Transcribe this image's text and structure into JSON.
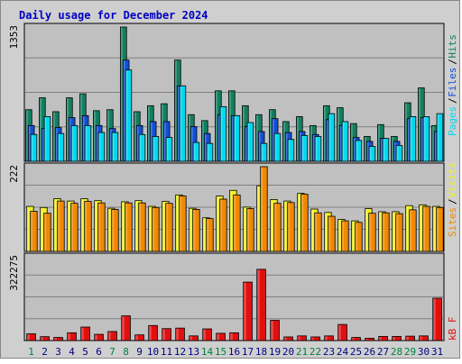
{
  "title": "Daily usage for December 2024",
  "colors": {
    "hits": "#128060",
    "files": "#1050d8",
    "pages": "#00d8f0",
    "visits": "#f0f020",
    "sites": "#f08800",
    "kbytes": "#e01010",
    "title": "#0000c0",
    "weekend": "#008040",
    "weekday": "#000080",
    "plot_bg": "#c0c0c0",
    "frame_bg": "#d0d0d0",
    "gridline": "#808080"
  },
  "chart_data": [
    {
      "type": "bar",
      "title": "Daily usage for December 2024",
      "ylabel_parts": [
        "Pages",
        "Files",
        "Hits"
      ],
      "ymax_label": "1353",
      "ylim": [
        0,
        1353
      ],
      "grid": true,
      "categories": [
        "1",
        "2",
        "3",
        "4",
        "5",
        "6",
        "7",
        "8",
        "9",
        "10",
        "11",
        "12",
        "13",
        "14",
        "15",
        "16",
        "17",
        "18",
        "19",
        "20",
        "21",
        "22",
        "23",
        "24",
        "25",
        "26",
        "27",
        "28",
        "29",
        "30",
        "31"
      ],
      "series": [
        {
          "name": "Hits",
          "values": [
            520,
            640,
            500,
            640,
            680,
            510,
            520,
            1353,
            500,
            560,
            580,
            1020,
            470,
            410,
            710,
            710,
            560,
            470,
            520,
            400,
            450,
            360,
            560,
            540,
            380,
            250,
            370,
            250,
            590,
            740,
            360
          ]
        },
        {
          "name": "Files",
          "values": [
            360,
            330,
            340,
            440,
            460,
            360,
            330,
            1020,
            360,
            400,
            400,
            760,
            350,
            280,
            470,
            460,
            350,
            300,
            430,
            290,
            300,
            270,
            420,
            360,
            240,
            200,
            230,
            200,
            430,
            440,
            300
          ]
        },
        {
          "name": "Pages",
          "values": [
            270,
            450,
            280,
            360,
            360,
            290,
            290,
            920,
            270,
            250,
            240,
            760,
            190,
            180,
            550,
            460,
            390,
            180,
            280,
            220,
            260,
            250,
            480,
            400,
            210,
            150,
            230,
            160,
            450,
            450,
            480
          ]
        }
      ]
    },
    {
      "type": "bar",
      "ylabel_parts": [
        "Sites",
        "Visits"
      ],
      "ymax_label": "222",
      "ylim": [
        0,
        222
      ],
      "grid": true,
      "categories": [
        "1",
        "2",
        "3",
        "4",
        "5",
        "6",
        "7",
        "8",
        "9",
        "10",
        "11",
        "12",
        "13",
        "14",
        "15",
        "16",
        "17",
        "18",
        "19",
        "20",
        "21",
        "22",
        "23",
        "24",
        "25",
        "26",
        "27",
        "28",
        "29",
        "30",
        "31"
      ],
      "series": [
        {
          "name": "Visits",
          "values": [
            118,
            115,
            138,
            132,
            138,
            133,
            113,
            130,
            133,
            118,
            131,
            148,
            113,
            88,
            145,
            160,
            116,
            172,
            136,
            132,
            152,
            111,
            102,
            84,
            80,
            112,
            104,
            104,
            120,
            122,
            118
          ]
        },
        {
          "name": "Sites",
          "values": [
            105,
            100,
            132,
            126,
            131,
            127,
            110,
            127,
            127,
            115,
            126,
            145,
            110,
            86,
            137,
            148,
            112,
            222,
            126,
            128,
            150,
            101,
            92,
            80,
            76,
            100,
            101,
            99,
            109,
            118,
            115
          ]
        }
      ]
    },
    {
      "type": "bar",
      "ylabel_parts": [
        "KBytes"
      ],
      "ylabel_visible": "kB F",
      "ymax_label": "322275",
      "ylim": [
        0,
        322275
      ],
      "grid": true,
      "categories": [
        "1",
        "2",
        "3",
        "4",
        "5",
        "6",
        "7",
        "8",
        "9",
        "10",
        "11",
        "12",
        "13",
        "14",
        "15",
        "16",
        "17",
        "18",
        "19",
        "20",
        "21",
        "22",
        "23",
        "24",
        "25",
        "26",
        "27",
        "28",
        "29",
        "30",
        "31"
      ],
      "series": [
        {
          "name": "KBytes",
          "values": [
            26000,
            15000,
            12000,
            30000,
            52000,
            24000,
            35000,
            95000,
            22000,
            58000,
            46000,
            48000,
            18000,
            45000,
            28000,
            30000,
            225000,
            274000,
            78000,
            14000,
            18000,
            14000,
            18000,
            62000,
            12000,
            9000,
            16000,
            16000,
            17000,
            18000,
            163000
          ]
        }
      ]
    }
  ],
  "x_labels": [
    {
      "label": "1",
      "weekend": true
    },
    {
      "label": "2",
      "weekend": false
    },
    {
      "label": "3",
      "weekend": false
    },
    {
      "label": "4",
      "weekend": false
    },
    {
      "label": "5",
      "weekend": false
    },
    {
      "label": "6",
      "weekend": false
    },
    {
      "label": "7",
      "weekend": true
    },
    {
      "label": "8",
      "weekend": true
    },
    {
      "label": "9",
      "weekend": false
    },
    {
      "label": "10",
      "weekend": false
    },
    {
      "label": "11",
      "weekend": false
    },
    {
      "label": "12",
      "weekend": false
    },
    {
      "label": "13",
      "weekend": false
    },
    {
      "label": "14",
      "weekend": true
    },
    {
      "label": "15",
      "weekend": true
    },
    {
      "label": "16",
      "weekend": false
    },
    {
      "label": "17",
      "weekend": false
    },
    {
      "label": "18",
      "weekend": false
    },
    {
      "label": "19",
      "weekend": false
    },
    {
      "label": "20",
      "weekend": false
    },
    {
      "label": "21",
      "weekend": true
    },
    {
      "label": "22",
      "weekend": true
    },
    {
      "label": "23",
      "weekend": false
    },
    {
      "label": "24",
      "weekend": false
    },
    {
      "label": "25",
      "weekend": false
    },
    {
      "label": "26",
      "weekend": false
    },
    {
      "label": "27",
      "weekend": false
    },
    {
      "label": "28",
      "weekend": true
    },
    {
      "label": "29",
      "weekend": true
    },
    {
      "label": "30",
      "weekend": false
    },
    {
      "label": "31",
      "weekend": false
    }
  ]
}
